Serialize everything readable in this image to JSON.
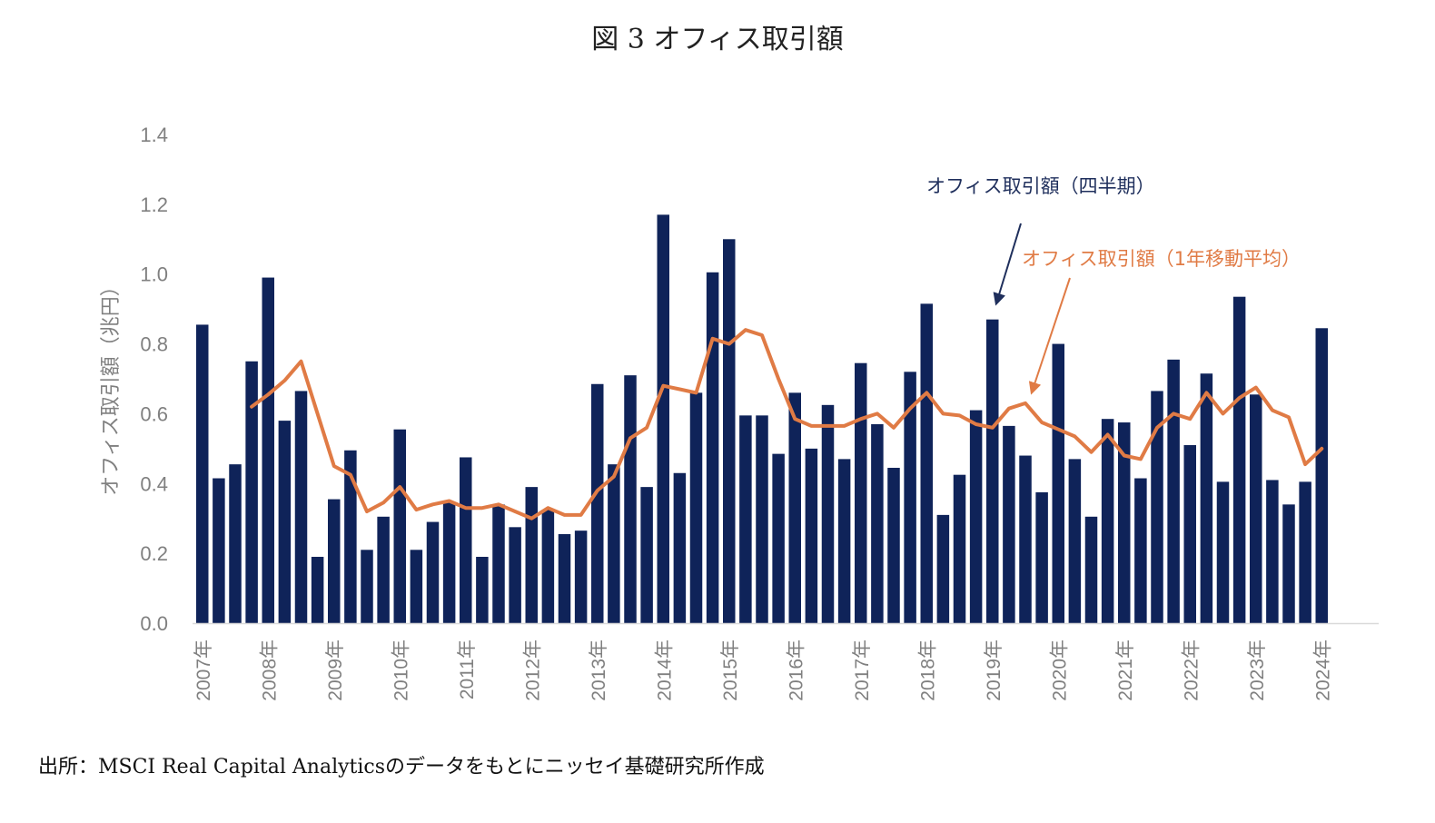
{
  "title": "図 3  オフィス取引額",
  "source": "出所：MSCI Real Capital Analyticsのデータをもとにニッセイ基礎研究所作成",
  "chart_data": {
    "type": "bar+line",
    "title": "図 3  オフィス取引額",
    "ylabel": "オフィス取引額（兆円）",
    "xlabel": "",
    "ylim": [
      0,
      1.4
    ],
    "yticks": [
      "0.0",
      "0.2",
      "0.4",
      "0.6",
      "0.8",
      "1.0",
      "1.2",
      "1.4"
    ],
    "year_labels": [
      "2007年",
      "2008年",
      "2009年",
      "2010年",
      "2011年",
      "2012年",
      "2013年",
      "2014年",
      "2015年",
      "2016年",
      "2017年",
      "2018年",
      "2019年",
      "2020年",
      "2021年",
      "2022年",
      "2023年",
      "2024年"
    ],
    "categories": [
      "2007Q1",
      "2007Q2",
      "2007Q3",
      "2007Q4",
      "2008Q1",
      "2008Q2",
      "2008Q3",
      "2008Q4",
      "2009Q1",
      "2009Q2",
      "2009Q3",
      "2009Q4",
      "2010Q1",
      "2010Q2",
      "2010Q3",
      "2010Q4",
      "2011Q1",
      "2011Q2",
      "2011Q3",
      "2011Q4",
      "2012Q1",
      "2012Q2",
      "2012Q3",
      "2012Q4",
      "2013Q1",
      "2013Q2",
      "2013Q3",
      "2013Q4",
      "2014Q1",
      "2014Q2",
      "2014Q3",
      "2014Q4",
      "2015Q1",
      "2015Q2",
      "2015Q3",
      "2015Q4",
      "2016Q1",
      "2016Q2",
      "2016Q3",
      "2016Q4",
      "2017Q1",
      "2017Q2",
      "2017Q3",
      "2017Q4",
      "2018Q1",
      "2018Q2",
      "2018Q3",
      "2018Q4",
      "2019Q1",
      "2019Q2",
      "2019Q3",
      "2019Q4",
      "2020Q1",
      "2020Q2",
      "2020Q3",
      "2020Q4",
      "2021Q1",
      "2021Q2",
      "2021Q3",
      "2021Q4",
      "2022Q1",
      "2022Q2",
      "2022Q3",
      "2022Q4",
      "2023Q1",
      "2023Q2",
      "2023Q3",
      "2023Q4",
      "2024Q1"
    ],
    "series": [
      {
        "name": "オフィス取引額（四半期）",
        "type": "bar",
        "color": "#0f2359",
        "values": [
          0.855,
          0.415,
          0.455,
          0.75,
          0.99,
          0.58,
          0.665,
          0.19,
          0.355,
          0.495,
          0.21,
          0.305,
          0.555,
          0.21,
          0.29,
          0.345,
          0.475,
          0.19,
          0.34,
          0.275,
          0.39,
          0.325,
          0.255,
          0.265,
          0.685,
          0.455,
          0.71,
          0.39,
          1.17,
          0.43,
          0.66,
          1.005,
          1.1,
          0.595,
          0.595,
          0.485,
          0.66,
          0.5,
          0.625,
          0.47,
          0.745,
          0.57,
          0.445,
          0.72,
          0.915,
          0.31,
          0.425,
          0.61,
          0.87,
          0.565,
          0.48,
          0.375,
          0.8,
          0.47,
          0.305,
          0.585,
          0.575,
          0.415,
          0.665,
          0.755,
          0.51,
          0.715,
          0.405,
          0.935,
          0.655,
          0.41,
          0.34,
          0.405,
          0.845
        ]
      },
      {
        "name": "オフィス取引額（1年移動平均）",
        "type": "line",
        "color": "#e07b45",
        "values": [
          null,
          null,
          null,
          0.62,
          0.655,
          0.695,
          0.75,
          0.6,
          0.45,
          0.425,
          0.32,
          0.345,
          0.39,
          0.325,
          0.34,
          0.35,
          0.33,
          0.33,
          0.34,
          0.32,
          0.3,
          0.33,
          0.31,
          0.31,
          0.38,
          0.42,
          0.53,
          0.56,
          0.68,
          0.67,
          0.66,
          0.815,
          0.8,
          0.84,
          0.825,
          0.7,
          0.585,
          0.565,
          0.565,
          0.565,
          0.585,
          0.6,
          0.56,
          0.615,
          0.66,
          0.6,
          0.595,
          0.57,
          0.56,
          0.615,
          0.63,
          0.575,
          0.555,
          0.535,
          0.49,
          0.54,
          0.48,
          0.47,
          0.56,
          0.6,
          0.585,
          0.66,
          0.6,
          0.645,
          0.675,
          0.61,
          0.59,
          0.455,
          0.5
        ]
      }
    ],
    "annotations": [
      {
        "text": "オフィス取引額（四半期）",
        "color": "#1f2f5c"
      },
      {
        "text": "オフィス取引額（1年移動平均）",
        "color": "#e07b45"
      }
    ]
  }
}
